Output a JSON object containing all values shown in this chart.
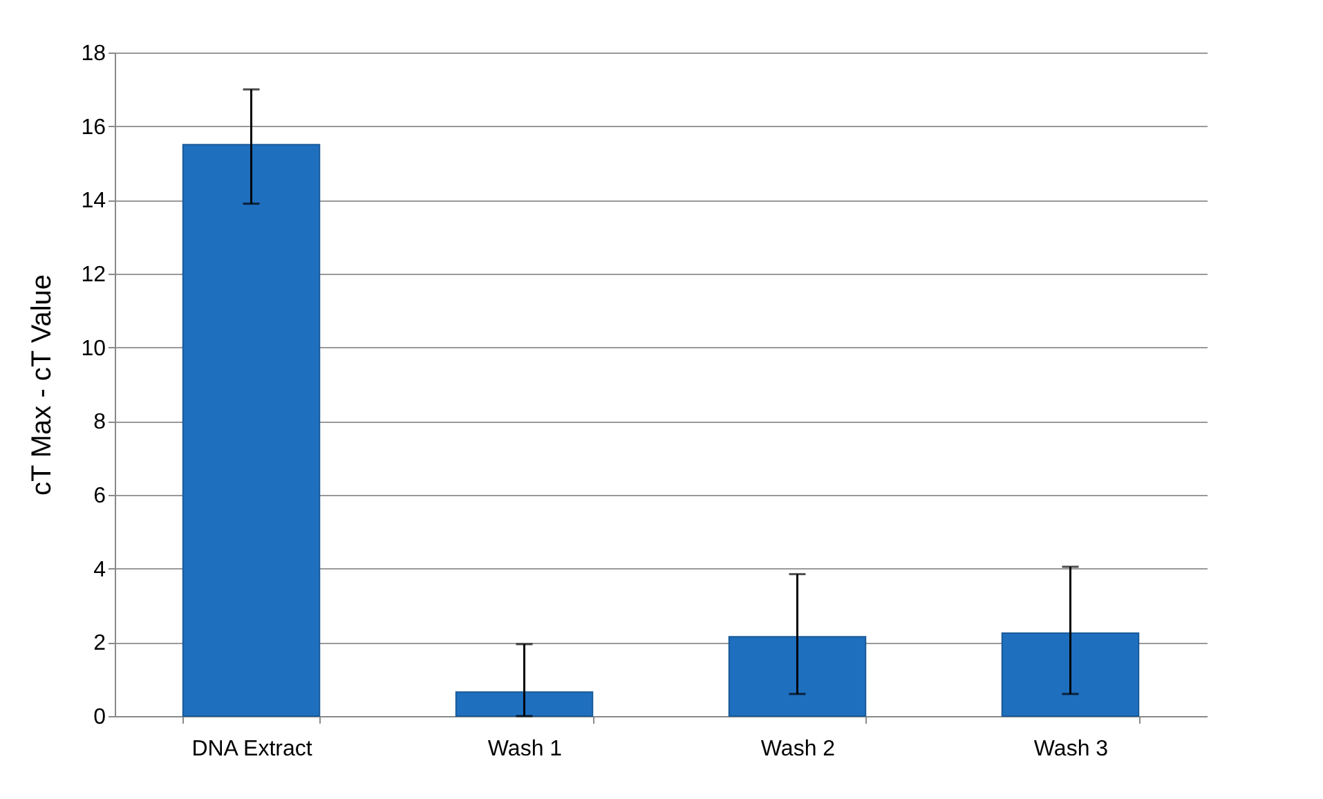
{
  "chart_data": {
    "type": "bar",
    "ylabel": "cT Max - cT Value",
    "categories": [
      "DNA Extract",
      "Wash 1",
      "Wash 2",
      "Wash 3"
    ],
    "values": [
      15.5,
      0.65,
      2.15,
      2.25
    ],
    "errors": [
      [
        13.9,
        17
      ],
      [
        0,
        1.95
      ],
      [
        0.6,
        3.85
      ],
      [
        0.6,
        4.05
      ]
    ],
    "color": "#1f6fbf",
    "ylim": [
      0,
      18
    ],
    "yticks": [
      0,
      2,
      4,
      6,
      8,
      10,
      12,
      14,
      16,
      18
    ],
    "grid": "y"
  }
}
